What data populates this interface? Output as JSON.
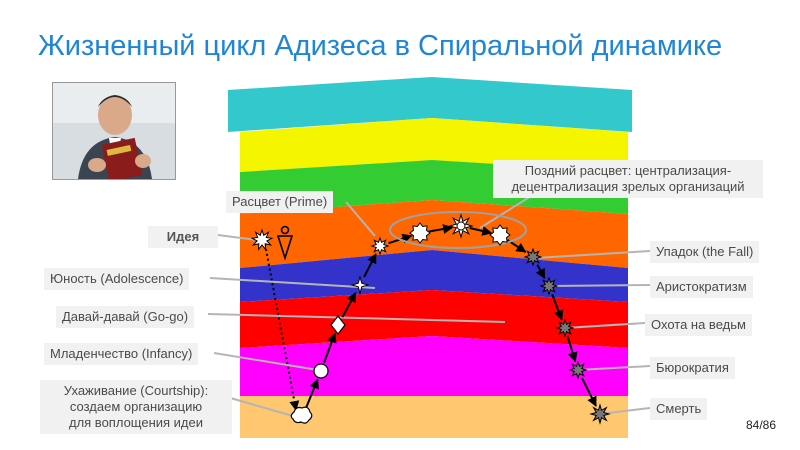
{
  "slide": {
    "title": "Жизненный цикл Адизеса в Спиральной динамике",
    "page_number": "84/86"
  },
  "photo": {
    "book_text": "ADIZES"
  },
  "bands": [
    {
      "name": "turquoise",
      "color": "#33c8cc"
    },
    {
      "name": "yellow",
      "color": "#f5f500"
    },
    {
      "name": "green",
      "color": "#33cc33"
    },
    {
      "name": "orange",
      "color": "#ff6600"
    },
    {
      "name": "blue",
      "color": "#3333cc"
    },
    {
      "name": "red",
      "color": "#ff0000"
    },
    {
      "name": "magenta",
      "color": "#ff00ff"
    },
    {
      "name": "beige",
      "color": "#ffc870"
    }
  ],
  "labels": {
    "courtship_l1": "Ухаживание (Courtship):",
    "courtship_l2": "создаем организацию",
    "courtship_l3": "для воплощения идеи",
    "infancy": "Младенчество (Infancy)",
    "gogo": "Давай-давай (Go-go)",
    "adolescence": "Юность (Adolescence)",
    "idea": "Идея",
    "prime": "Расцвет (Prime)",
    "late_prime_l1": "Поздний расцвет: централизация-",
    "late_prime_l2": "децентрализация зрелых организаций",
    "fall": "Упадок (the Fall)",
    "aristocracy": "Аристократизм",
    "witch_hunt": "Охота на ведьм",
    "bureaucracy": "Бюрократия",
    "death": "Смерть"
  },
  "colors": {
    "title": "#1f86d6",
    "label_bg": "#f1f1f1",
    "label_text": "#4a4a4a",
    "connector": "#b5b5b5"
  }
}
